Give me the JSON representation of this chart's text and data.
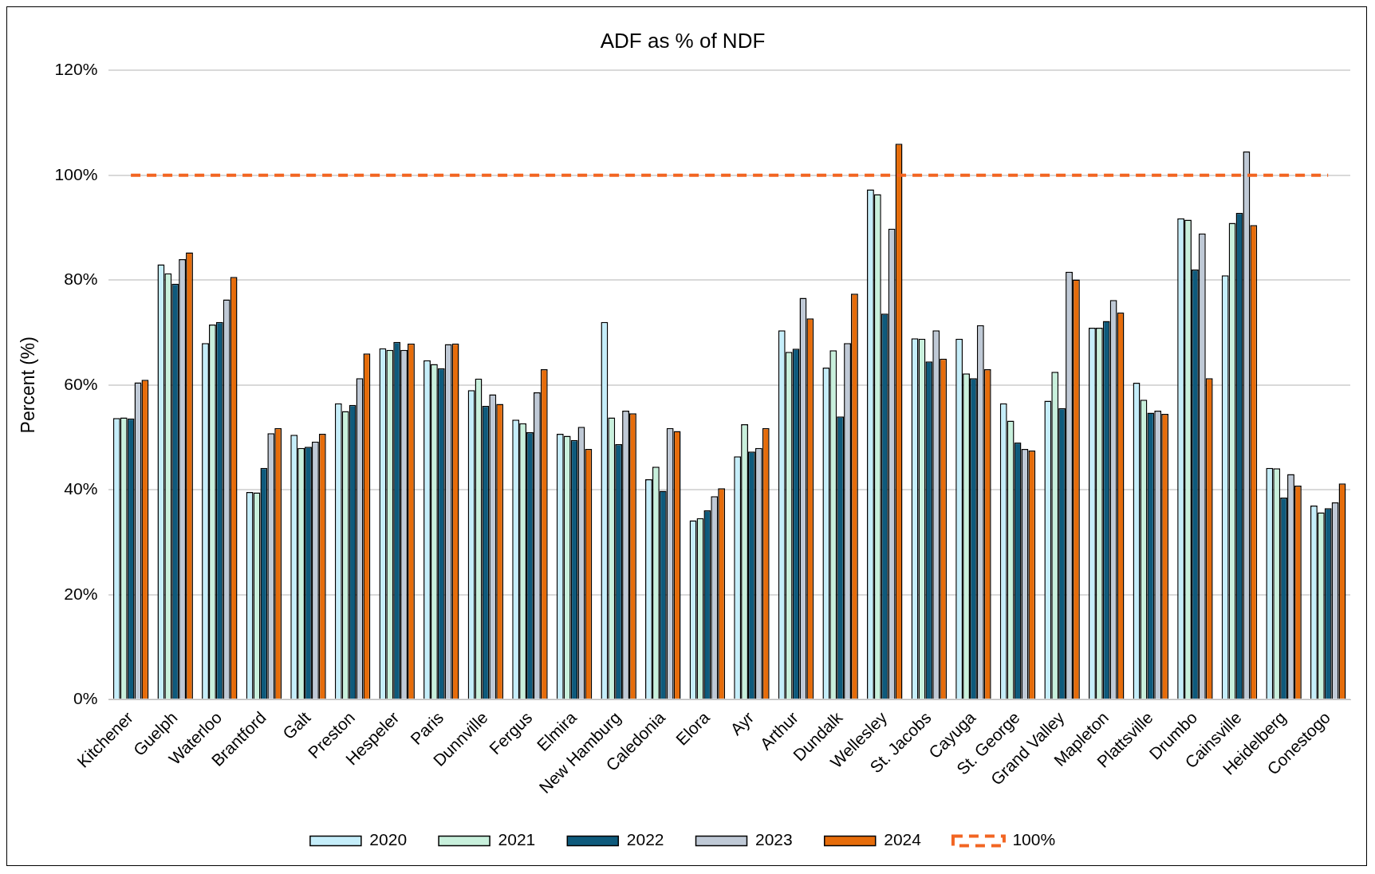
{
  "chart_data": {
    "type": "bar",
    "title": "ADF as % of NDF",
    "ylabel": "Percent (%)",
    "categories": [
      "Kitchener",
      "Guelph",
      "Waterloo",
      "Brantford",
      "Galt",
      "Preston",
      "Hespeler",
      "Paris",
      "Dunnville",
      "Fergus",
      "Elmira",
      "New Hamburg",
      "Caledonia",
      "Elora",
      "Ayr",
      "Arthur",
      "Dundalk",
      "Wellesley",
      "St. Jacobs",
      "Cayuga",
      "St. George",
      "Grand Valley",
      "Mapleton",
      "Plattsville",
      "Drumbo",
      "Cainsville",
      "Heidelberg",
      "Conestogo"
    ],
    "series": [
      {
        "name": "2020",
        "color": "#c5eefa",
        "values": [
          53.7,
          83,
          68,
          39.6,
          50.5,
          56.5,
          67,
          64.7,
          59,
          53.4,
          50.7,
          72,
          42,
          34.2,
          46.4,
          70.4,
          63.3,
          97.3,
          68.9,
          68.8,
          56.5,
          57,
          70.9,
          60.4,
          91.8,
          80.9,
          44.2,
          37
        ]
      },
      {
        "name": "2021",
        "color": "#c8f0dc",
        "values": [
          53.8,
          81.3,
          71.5,
          39.5,
          48,
          55,
          66.7,
          64,
          61.2,
          52.7,
          50.3,
          53.8,
          44.4,
          34.6,
          52.5,
          66.3,
          66.6,
          96.4,
          68.8,
          62.2,
          53.2,
          62.5,
          70.9,
          57.2,
          91.5,
          90.9,
          44.1,
          35.7
        ]
      },
      {
        "name": "2022",
        "color": "#0e5a7c",
        "values": [
          53.6,
          79.3,
          72,
          44.2,
          48.2,
          56.2,
          68.2,
          63.2,
          56,
          51,
          49.5,
          48.7,
          39.8,
          36.1,
          47.3,
          66.9,
          54,
          73.6,
          64.5,
          61.3,
          49,
          55.6,
          72.2,
          54.7,
          82,
          92.8,
          38.5,
          36.5
        ]
      },
      {
        "name": "2023",
        "color": "#bfc9d6",
        "values": [
          60.5,
          84,
          76.3,
          50.8,
          49.2,
          61.3,
          66.7,
          67.8,
          58.2,
          58.6,
          52,
          55.1,
          51.8,
          38.8,
          48,
          76.6,
          68,
          89.8,
          70.4,
          71.4,
          47.8,
          81.6,
          76.2,
          55.1,
          88.9,
          104.5,
          43,
          37.6
        ]
      },
      {
        "name": "2024",
        "color": "#e66c0a",
        "values": [
          61,
          85.3,
          80.6,
          51.8,
          50.7,
          66,
          67.9,
          67.9,
          56.4,
          63,
          47.8,
          54.6,
          51.2,
          40.3,
          51.8,
          72.7,
          77.4,
          106,
          65,
          63,
          47.5,
          80.1,
          73.8,
          54.5,
          61.3,
          90.5,
          40.8,
          41.2
        ]
      }
    ],
    "ref_lines": [
      {
        "axis": "y",
        "value": 100,
        "label": "100%",
        "color": "#f26522",
        "line_style": "dashed"
      }
    ],
    "ylim": [
      0,
      120
    ],
    "yticks": [
      {
        "value": 0,
        "label": "0%"
      },
      {
        "value": 20,
        "label": "20%"
      },
      {
        "value": 40,
        "label": "40%"
      },
      {
        "value": 60,
        "label": "60%"
      },
      {
        "value": 80,
        "label": "80%"
      },
      {
        "value": 100,
        "label": "100%"
      },
      {
        "value": 120,
        "label": "120%"
      }
    ],
    "grid": "y",
    "legend": "bottom"
  }
}
